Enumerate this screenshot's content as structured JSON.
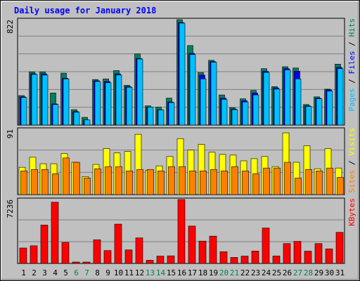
{
  "title": "Daily usage for January 2018",
  "colors": {
    "background": "#c0c0c0",
    "plot": "#c0c0c0",
    "hits": "#00805c",
    "files": "#0000ff",
    "pages": "#00c0ff",
    "visits": "#ffff00",
    "sites": "#ff8000",
    "kbytes": "#ff0000",
    "title": "#0000ff",
    "weekend": "#00805c",
    "weekday": "#000000"
  },
  "chart_data": [
    {
      "type": "bar",
      "name": "hits-files-pages",
      "max_label": "822",
      "ylim": [
        0,
        822
      ],
      "legend": [
        {
          "text": "Pages",
          "color": "#00c0ff"
        },
        {
          "text": " / ",
          "color": "#000000"
        },
        {
          "text": "Files",
          "color": "#0000ff"
        },
        {
          "text": " / ",
          "color": "#000000"
        },
        {
          "text": "Hits",
          "color": "#00805c"
        }
      ],
      "categories": [
        "1",
        "2",
        "3",
        "4",
        "5",
        "6",
        "7",
        "8",
        "9",
        "10",
        "11",
        "12",
        "13",
        "14",
        "15",
        "16",
        "17",
        "18",
        "19",
        "20",
        "21",
        "22",
        "23",
        "24",
        "25",
        "26",
        "27",
        "28",
        "29",
        "30",
        "31"
      ],
      "series": [
        {
          "name": "Hits",
          "values": [
            230,
            415,
            415,
            250,
            405,
            120,
            60,
            355,
            360,
            425,
            310,
            555,
            150,
            140,
            210,
            822,
            620,
            410,
            505,
            235,
            135,
            205,
            270,
            440,
            300,
            455,
            445,
            160,
            220,
            280,
            475
          ]
        },
        {
          "name": "Files",
          "values": [
            220,
            400,
            400,
            165,
            365,
            105,
            40,
            345,
            340,
            400,
            300,
            520,
            140,
            120,
            180,
            800,
            560,
            390,
            495,
            210,
            125,
            190,
            250,
            420,
            290,
            440,
            420,
            150,
            210,
            275,
            450
          ]
        },
        {
          "name": "Pages",
          "values": [
            215,
            395,
            390,
            160,
            360,
            100,
            40,
            340,
            330,
            390,
            295,
            515,
            140,
            118,
            175,
            795,
            550,
            360,
            490,
            200,
            120,
            180,
            235,
            410,
            280,
            430,
            360,
            145,
            205,
            265,
            440
          ]
        }
      ]
    },
    {
      "type": "bar",
      "name": "visits-sites",
      "max_label": "91",
      "ylim": [
        0,
        91
      ],
      "legend": [
        {
          "text": "Sites",
          "color": "#ff8000"
        },
        {
          "text": " / ",
          "color": "#000000"
        },
        {
          "text": "Visits",
          "color": "#ffff00"
        }
      ],
      "categories": [
        "1",
        "2",
        "3",
        "4",
        "5",
        "6",
        "7",
        "8",
        "9",
        "10",
        "11",
        "12",
        "13",
        "14",
        "15",
        "16",
        "17",
        "18",
        "19",
        "20",
        "21",
        "22",
        "23",
        "24",
        "25",
        "26",
        "27",
        "28",
        "29",
        "30",
        "31"
      ],
      "series": [
        {
          "name": "Visits",
          "values": [
            38,
            52,
            43,
            43,
            57,
            45,
            25,
            42,
            64,
            58,
            60,
            84,
            34,
            40,
            53,
            78,
            62,
            70,
            59,
            56,
            55,
            47,
            50,
            53,
            39,
            86,
            45,
            68,
            36,
            64,
            37
          ]
        },
        {
          "name": "Sites",
          "values": [
            33,
            35,
            35,
            29,
            51,
            45,
            23,
            36,
            39,
            39,
            33,
            35,
            35,
            33,
            39,
            39,
            33,
            33,
            35,
            33,
            39,
            33,
            29,
            37,
            37,
            45,
            23,
            35,
            33,
            37,
            24
          ]
        }
      ]
    },
    {
      "type": "bar",
      "name": "kbytes",
      "max_label": "7236",
      "ylim": [
        0,
        7236
      ],
      "legend": [
        {
          "text": "KBytes",
          "color": "#ff0000"
        }
      ],
      "categories": [
        "1",
        "2",
        "3",
        "4",
        "5",
        "6",
        "7",
        "8",
        "9",
        "10",
        "11",
        "12",
        "13",
        "14",
        "15",
        "16",
        "17",
        "18",
        "19",
        "20",
        "21",
        "22",
        "23",
        "24",
        "25",
        "26",
        "27",
        "28",
        "29",
        "30",
        "31"
      ],
      "series": [
        {
          "name": "KBytes",
          "values": [
            1750,
            2000,
            4350,
            6930,
            2380,
            160,
            160,
            2680,
            1460,
            4450,
            1530,
            2890,
            360,
            830,
            860,
            7236,
            4230,
            2530,
            3090,
            1330,
            680,
            830,
            1400,
            4010,
            850,
            2250,
            2500,
            1390,
            2250,
            1650,
            3520
          ]
        }
      ]
    }
  ]
}
